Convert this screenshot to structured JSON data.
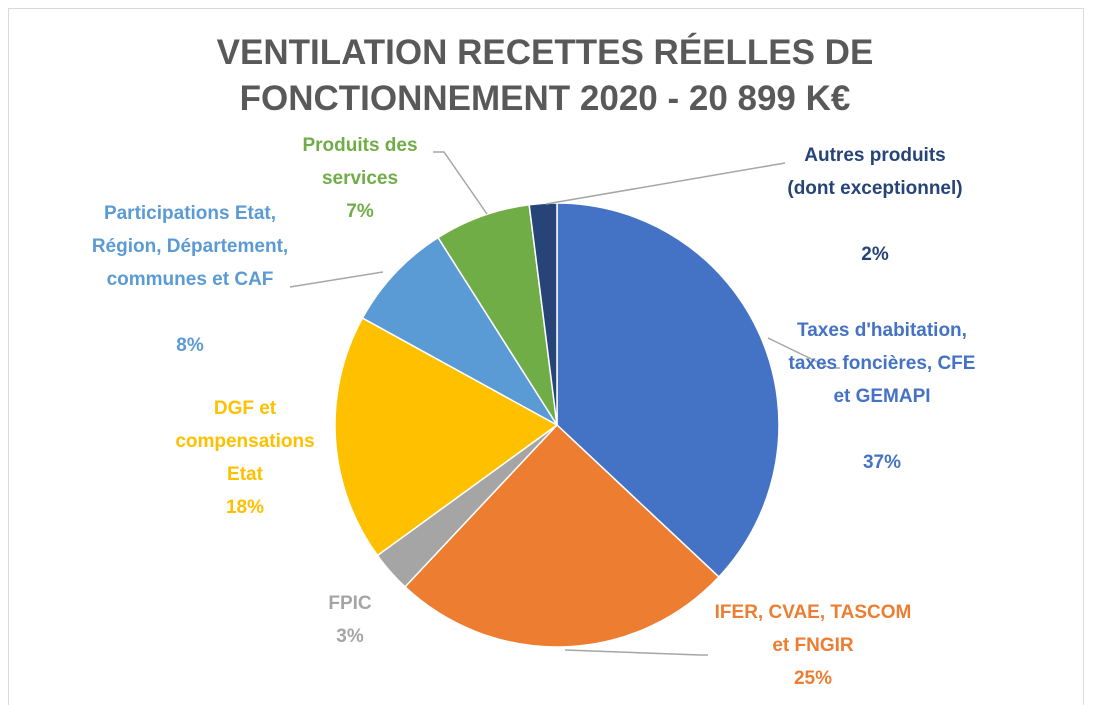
{
  "chart_data": {
    "type": "pie",
    "title": "VENTILATION RECETTES RÉELLES DE FONCTIONNEMENT 2020 - 20 899 K€",
    "categories": [
      "Taxes d'habitation, taxes foncières, CFE et GEMAPI",
      "IFER, CVAE, TASCOM et FNGIR",
      "FPIC",
      "DGF et compensations Etat",
      "Participations Etat, Région, Département, communes et CAF",
      "Produits des services",
      "Autres produits (dont exceptionnel)"
    ],
    "values": [
      37,
      25,
      3,
      18,
      8,
      7,
      2
    ],
    "value_labels": [
      "37%",
      "25%",
      "3%",
      "18%",
      "8%",
      "7%",
      "2%"
    ],
    "colors": [
      "#4472c4",
      "#ed7d31",
      "#a5a5a5",
      "#ffc000",
      "#5b9bd5",
      "#70ad47",
      "#264478"
    ]
  }
}
